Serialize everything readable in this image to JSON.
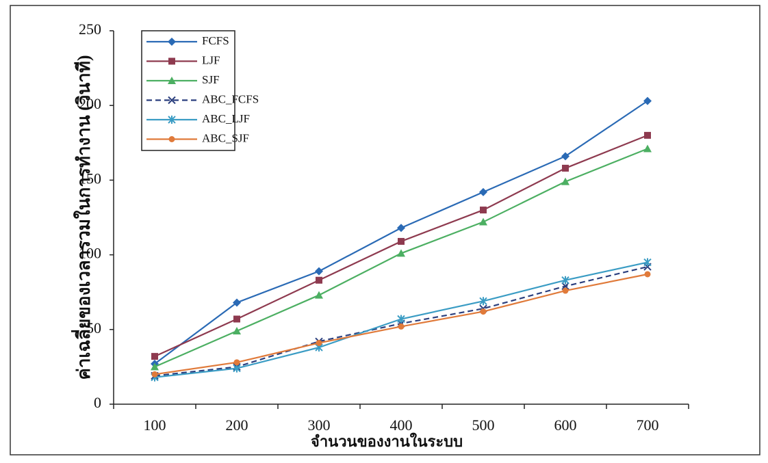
{
  "chart_data": {
    "type": "line",
    "x_label": "จำนวนของงานในระบบ",
    "y_label": "ค่าเฉลี่ยของเวลารวมในการทำงาน (วินาที)",
    "categories": [
      "100",
      "200",
      "300",
      "400",
      "500",
      "600",
      "700"
    ],
    "ylim": [
      0,
      250
    ],
    "yticks": [
      0,
      50,
      100,
      150,
      200,
      250
    ],
    "legend": "top-left",
    "series": [
      {
        "name": "FCFS",
        "color": "#2a6ab5",
        "marker": "diamond",
        "dash": false,
        "values": [
          27,
          68,
          89,
          118,
          142,
          166,
          203
        ]
      },
      {
        "name": "LJF",
        "color": "#8e3a4f",
        "marker": "square",
        "dash": false,
        "values": [
          32,
          57,
          83,
          109,
          130,
          158,
          180
        ]
      },
      {
        "name": "SJF",
        "color": "#4caf62",
        "marker": "triangle",
        "dash": false,
        "values": [
          25,
          49,
          73,
          101,
          122,
          149,
          171
        ]
      },
      {
        "name": "ABC_FCFS",
        "color": "#2b3f7e",
        "marker": "x",
        "dash": true,
        "values": [
          19,
          25,
          42,
          54,
          64,
          79,
          92
        ]
      },
      {
        "name": "ABC_LJF",
        "color": "#3a9cc4",
        "marker": "asterisk",
        "dash": false,
        "values": [
          18,
          24,
          38,
          57,
          69,
          83,
          95
        ]
      },
      {
        "name": "ABC_SJF",
        "color": "#e07a3a",
        "marker": "circle",
        "dash": false,
        "values": [
          20,
          28,
          41,
          52,
          62,
          76,
          87
        ]
      }
    ]
  }
}
